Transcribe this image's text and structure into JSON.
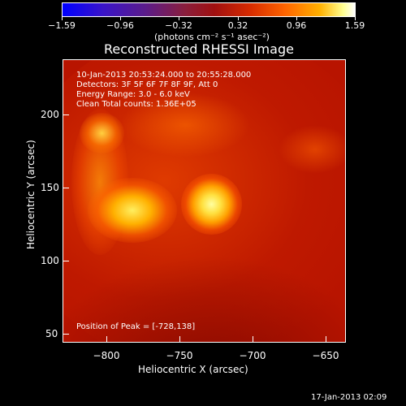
{
  "colorbar": {
    "tick_labels": [
      "−1.59",
      "−0.96",
      "−0.32",
      "0.32",
      "0.96",
      "1.59"
    ],
    "units": "(photons cm⁻² s⁻¹ asec⁻²)"
  },
  "title": "Reconstructed RHESSI Image",
  "info": {
    "time_range": "10-Jan-2013 20:53:24.000 to 20:55:28.000",
    "detectors": "Detectors: 3F 5F 6F 7F 8F 9F, Att 0",
    "energy": "Energy Range: 3.0 - 6.0 keV",
    "clean": "Clean    Total counts: 1.36E+05"
  },
  "peak": "Position of Peak = [-728,138]",
  "axes": {
    "x_label": "Heliocentric X (arcsec)",
    "y_label": "Heliocentric Y (arcsec)",
    "x_ticks": [
      "−800",
      "−750",
      "−700",
      "−650"
    ],
    "y_ticks": [
      "200",
      "150",
      "100",
      "50"
    ]
  },
  "footer_date": "17-Jan-2013 02:09",
  "colors": {
    "background": "#000000",
    "image_base": "#b81400",
    "peak": "#ffff80"
  }
}
